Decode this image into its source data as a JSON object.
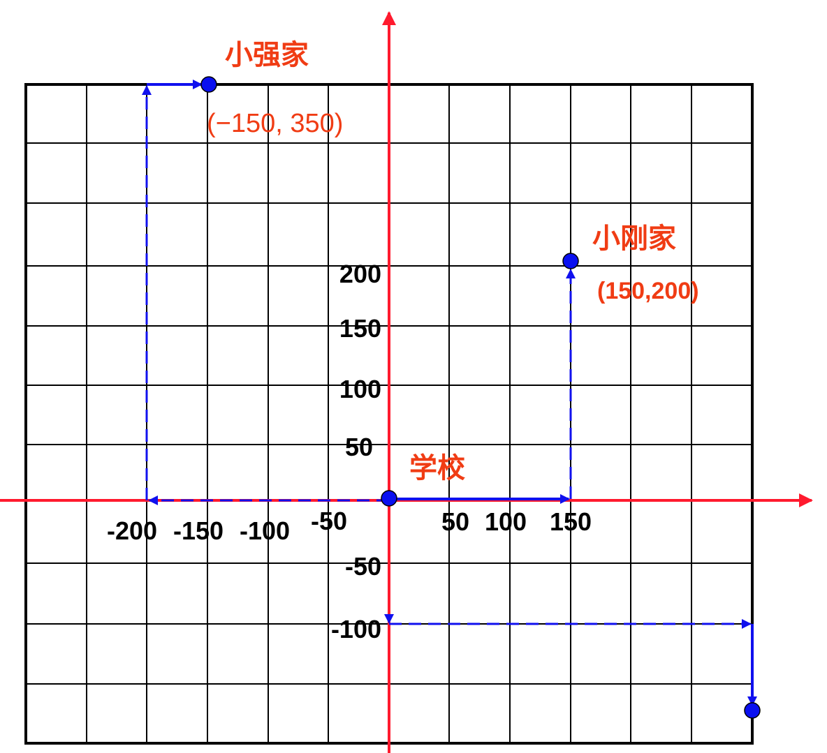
{
  "diagram": {
    "colors": {
      "grid": "#000000",
      "axis": "#ff1a2e",
      "path": "#1010ee",
      "point": "#0a10f0",
      "label": "#f03c14"
    },
    "x_ticks": [
      "-200",
      "-150",
      "-100",
      "-50",
      "50",
      "100",
      "150"
    ],
    "y_ticks": [
      "200",
      "150",
      "100",
      "50",
      "-50",
      "-100"
    ],
    "places": {
      "qiang": {
        "name": "小强家",
        "coord": "(−150, 350)",
        "x": -150,
        "y": 350
      },
      "gang": {
        "name": "小刚家",
        "coord": "(150,200)",
        "x": 150,
        "y": 200
      },
      "school": {
        "name": "学校",
        "x": 0,
        "y": 0
      },
      "unlabeled": {
        "x": 300,
        "y": -175
      }
    }
  }
}
